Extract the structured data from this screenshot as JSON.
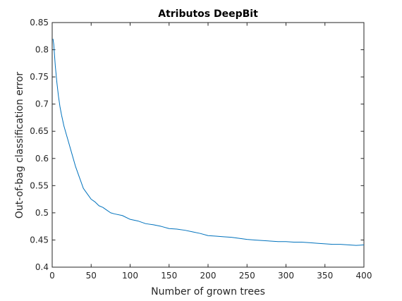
{
  "chart_data": {
    "type": "line",
    "title": "Atributos DeepBit",
    "xlabel": "Number of grown trees",
    "ylabel": "Out-of-bag classification error",
    "xlim": [
      0,
      400
    ],
    "ylim": [
      0.4,
      0.85
    ],
    "xticks": [
      0,
      50,
      100,
      150,
      200,
      250,
      300,
      350,
      400
    ],
    "yticks": [
      0.4,
      0.45,
      0.5,
      0.55,
      0.6,
      0.65,
      0.7,
      0.75,
      0.8,
      0.85
    ],
    "xtick_labels": [
      "0",
      "50",
      "100",
      "150",
      "200",
      "250",
      "300",
      "350",
      "400"
    ],
    "ytick_labels": [
      "0.4",
      "0.45",
      "0.5",
      "0.55",
      "0.6",
      "0.65",
      "0.7",
      "0.75",
      "0.8",
      "0.85"
    ],
    "grid": false,
    "series_color": "#0072BD",
    "series": [
      {
        "x": [
          1,
          2,
          3,
          4,
          5,
          6,
          8,
          10,
          12,
          15,
          18,
          20,
          25,
          30,
          35,
          40,
          45,
          50,
          55,
          60,
          65,
          70,
          75,
          80,
          90,
          100,
          110,
          120,
          130,
          140,
          150,
          160,
          170,
          180,
          190,
          200,
          210,
          220,
          230,
          240,
          250,
          260,
          270,
          280,
          290,
          300,
          310,
          320,
          330,
          340,
          350,
          360,
          370,
          380,
          390,
          400
        ],
        "y": [
          0.82,
          0.81,
          0.79,
          0.77,
          0.755,
          0.74,
          0.715,
          0.695,
          0.68,
          0.66,
          0.645,
          0.635,
          0.61,
          0.585,
          0.565,
          0.545,
          0.535,
          0.525,
          0.52,
          0.513,
          0.51,
          0.505,
          0.5,
          0.498,
          0.495,
          0.488,
          0.485,
          0.48,
          0.478,
          0.475,
          0.471,
          0.47,
          0.468,
          0.465,
          0.462,
          0.458,
          0.457,
          0.456,
          0.455,
          0.453,
          0.451,
          0.45,
          0.449,
          0.448,
          0.447,
          0.447,
          0.446,
          0.446,
          0.445,
          0.444,
          0.443,
          0.442,
          0.442,
          0.441,
          0.44,
          0.441
        ]
      }
    ]
  }
}
